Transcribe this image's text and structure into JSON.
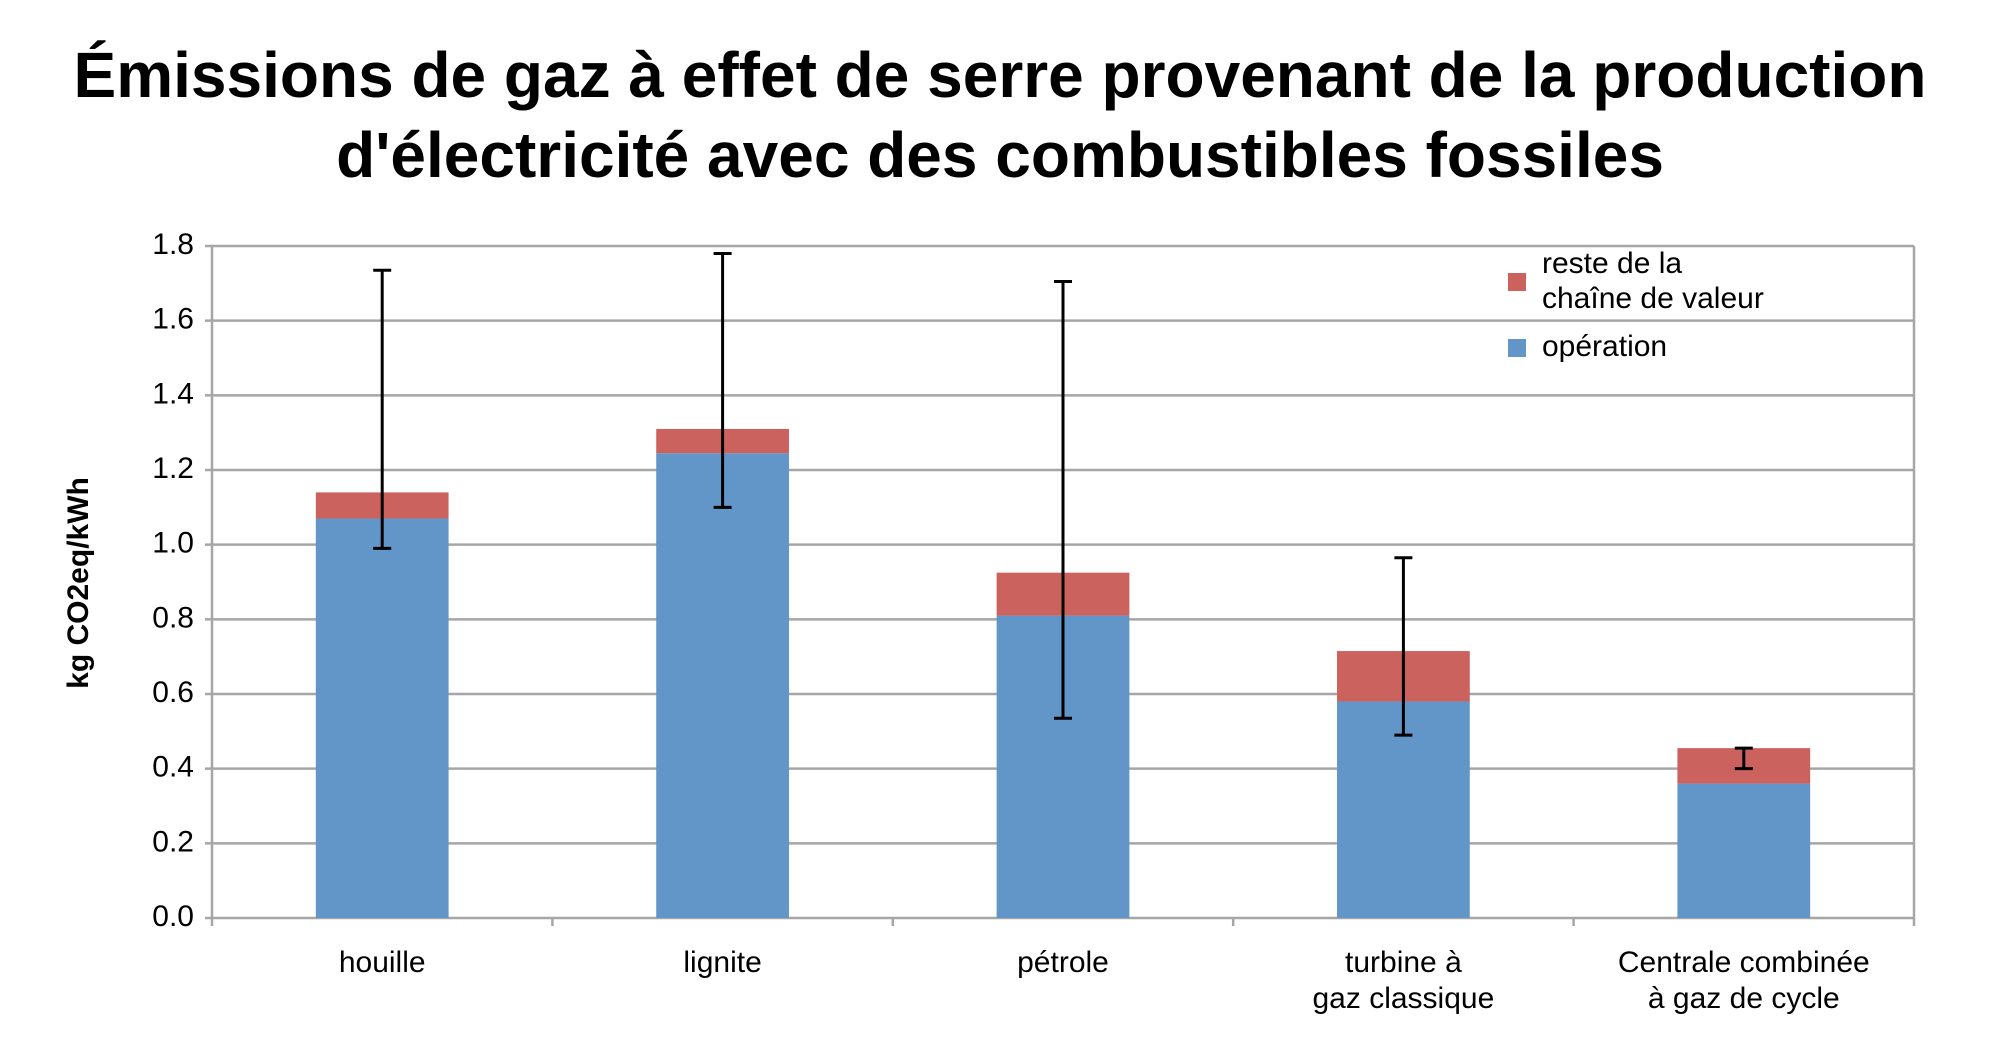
{
  "chart_data": {
    "type": "stacked_bar",
    "title": [
      "Émissions de gaz à effet de serre provenant de la production",
      "d'électricité avec des combustibles fossiles"
    ],
    "y_label": "kg CO2eq/kWh",
    "categories": [
      [
        "houille"
      ],
      [
        "lignite"
      ],
      [
        "pétrole"
      ],
      [
        "turbine à",
        "gaz classique"
      ],
      [
        "Centrale combinée",
        "à gaz de cycle"
      ]
    ],
    "series": [
      {
        "name": [
          "opération"
        ],
        "color": "#6296c9",
        "values": [
          1.07,
          1.245,
          0.81,
          0.58,
          0.36
        ]
      },
      {
        "name": [
          "reste de la",
          "chaîne de valeur"
        ],
        "color": "#cc625e",
        "values": [
          0.07,
          0.065,
          0.115,
          0.135,
          0.095
        ]
      }
    ],
    "ranges": [
      [
        0.99,
        1.735
      ],
      [
        1.1,
        1.78
      ],
      [
        0.535,
        1.705
      ],
      [
        0.49,
        0.965
      ],
      [
        0.4,
        0.455
      ]
    ],
    "ylim": [
      0,
      1.8
    ],
    "yticks": [
      {
        "value": 0,
        "label": "0.0"
      },
      0.2,
      0.4,
      0.6,
      0.8,
      {
        "value": 1,
        "label": "1.0"
      },
      1.2,
      1.4,
      1.6,
      1.8
    ],
    "grid": true
  }
}
